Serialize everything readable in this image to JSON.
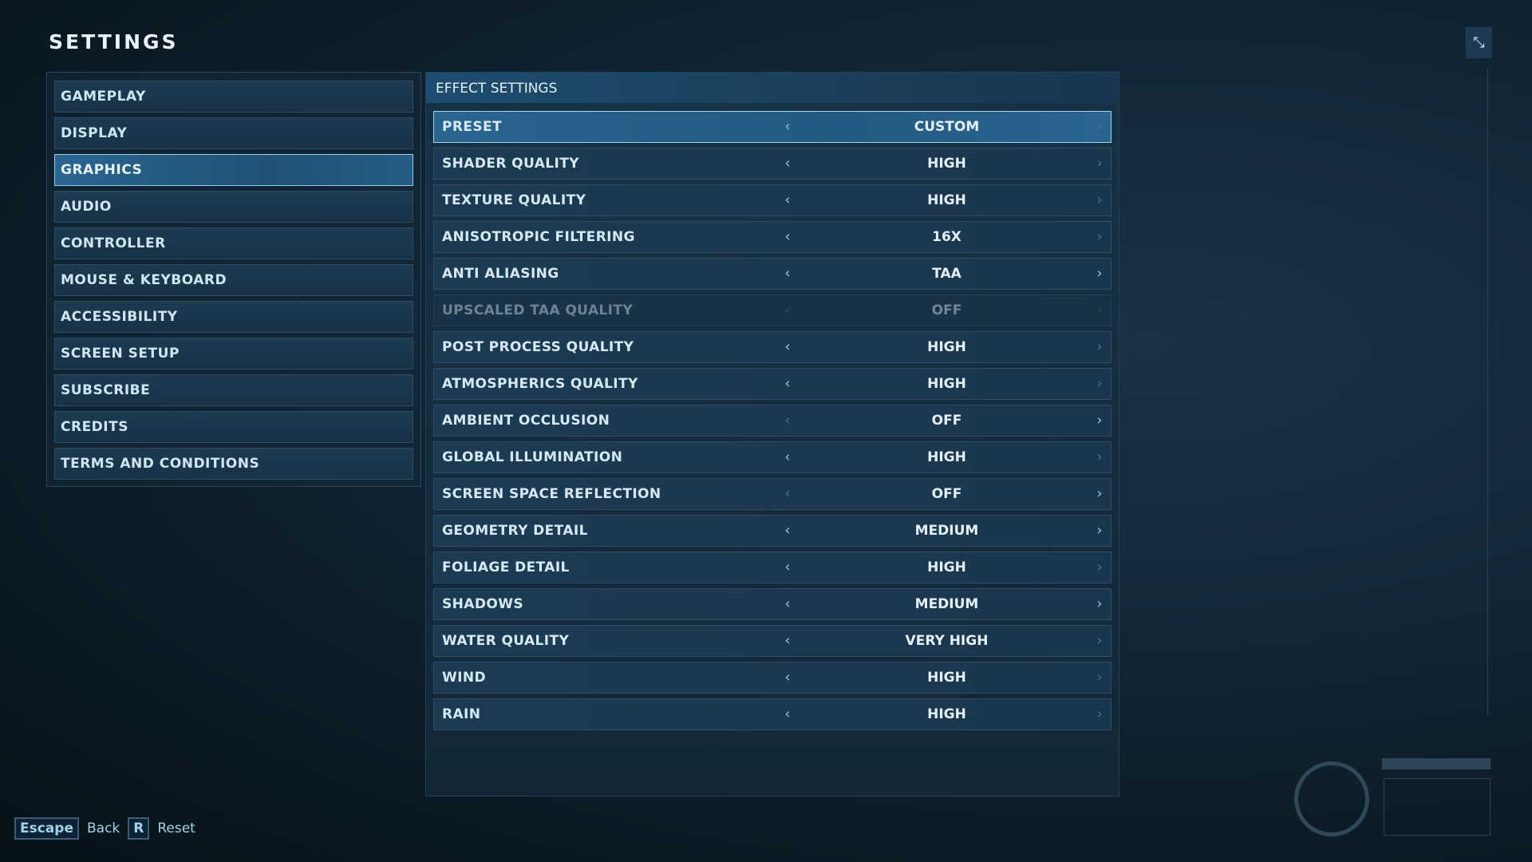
{
  "title": "SETTINGS",
  "close_icon": "collapse-arrows-icon",
  "sidebar": {
    "selected": "GRAPHICS",
    "items": [
      "GAMEPLAY",
      "DISPLAY",
      "GRAPHICS",
      "AUDIO",
      "CONTROLLER",
      "MOUSE & KEYBOARD",
      "ACCESSIBILITY",
      "SCREEN SETUP",
      "SUBSCRIBE",
      "CREDITS",
      "TERMS AND CONDITIONS"
    ]
  },
  "main": {
    "header": "EFFECT SETTINGS",
    "rows": [
      {
        "label": "PRESET",
        "value": "CUSTOM",
        "selected": true,
        "left": true,
        "right": false
      },
      {
        "label": "SHADER QUALITY",
        "value": "HIGH",
        "left": true,
        "right": false
      },
      {
        "label": "TEXTURE QUALITY",
        "value": "HIGH",
        "left": true,
        "right": false
      },
      {
        "label": "ANISOTROPIC FILTERING",
        "value": "16X",
        "left": true,
        "right": false
      },
      {
        "label": "ANTI ALIASING",
        "value": "TAA",
        "left": true,
        "right": true
      },
      {
        "label": "UPSCALED TAA QUALITY",
        "value": "OFF",
        "disabled": true,
        "left": false,
        "right": false
      },
      {
        "label": "POST PROCESS QUALITY",
        "value": "HIGH",
        "left": true,
        "right": false
      },
      {
        "label": "ATMOSPHERICS QUALITY",
        "value": "HIGH",
        "left": true,
        "right": false
      },
      {
        "label": "AMBIENT OCCLUSION",
        "value": "OFF",
        "left": false,
        "right": true
      },
      {
        "label": "GLOBAL ILLUMINATION",
        "value": "HIGH",
        "left": true,
        "right": false
      },
      {
        "label": "SCREEN SPACE REFLECTION",
        "value": "OFF",
        "left": false,
        "right": true
      },
      {
        "label": "GEOMETRY DETAIL",
        "value": "MEDIUM",
        "left": true,
        "right": true
      },
      {
        "label": "FOLIAGE DETAIL",
        "value": "HIGH",
        "left": true,
        "right": false
      },
      {
        "label": "SHADOWS",
        "value": "MEDIUM",
        "left": true,
        "right": true
      },
      {
        "label": "WATER QUALITY",
        "value": "VERY HIGH",
        "left": true,
        "right": false
      },
      {
        "label": "WIND",
        "value": "HIGH",
        "left": true,
        "right": false
      },
      {
        "label": "RAIN",
        "value": "HIGH",
        "left": true,
        "right": false
      }
    ]
  },
  "footer": {
    "escape_key": "Escape",
    "back": "Back",
    "reset_key": "R",
    "reset": "Reset"
  },
  "colors": {
    "accent": "#2a6590",
    "highlight_border": "#9ad5f2",
    "background": "#0a1820"
  }
}
